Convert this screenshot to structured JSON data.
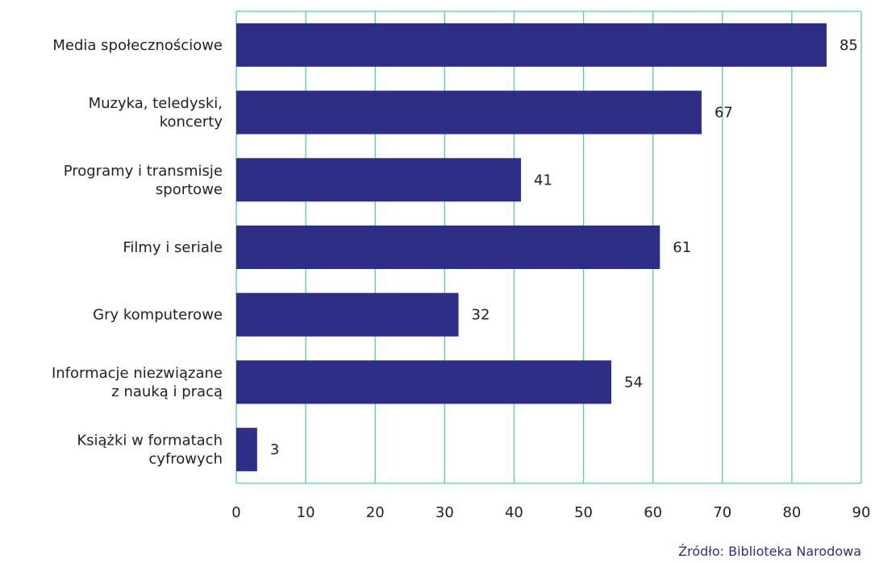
{
  "chart_data": {
    "type": "bar",
    "orientation": "horizontal",
    "categories": [
      [
        "Media społecznościowe"
      ],
      [
        "Muzyka, teledyski,",
        "koncerty"
      ],
      [
        "Programy i transmisje",
        "sportowe"
      ],
      [
        "Filmy i seriale"
      ],
      [
        "Gry komputerowe"
      ],
      [
        "Informacje niezwiązane",
        "z nauką i pracą"
      ],
      [
        "Książki w formatach",
        "cyfrowych"
      ]
    ],
    "values": [
      85,
      67,
      41,
      61,
      32,
      54,
      3
    ],
    "xlim": [
      0,
      90
    ],
    "x_ticks": [
      "0",
      "10",
      "20",
      "30",
      "40",
      "50",
      "60",
      "70",
      "80",
      "90"
    ],
    "grid": true,
    "bar_color": "#2e2e86",
    "grid_color": "#5dcaa5",
    "title": "",
    "xlabel": "",
    "ylabel": ""
  },
  "source": "Źródło: Biblioteka Narodowa"
}
